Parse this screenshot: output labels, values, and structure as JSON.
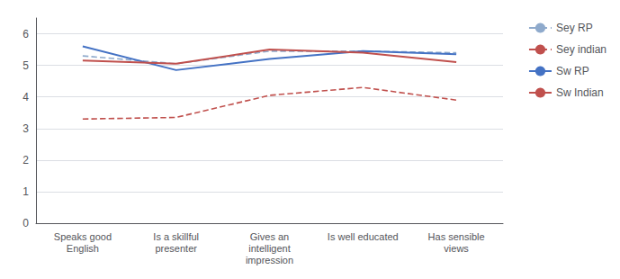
{
  "chart_data": {
    "type": "line",
    "categories": [
      "Speaks good\nEnglish",
      "Is a skillful\npresenter",
      "Gives an\nintelligent\nimpression",
      "Is well educated",
      "Has sensible\nviews"
    ],
    "series": [
      {
        "name": "Sey RP",
        "color": "#8faacc",
        "line_style": "dashed",
        "values": [
          5.3,
          5.05,
          5.45,
          5.45,
          5.4
        ]
      },
      {
        "name": "Sey indian",
        "color": "#c0504d",
        "line_style": "dashed",
        "values": [
          3.3,
          3.35,
          4.05,
          4.3,
          3.9
        ]
      },
      {
        "name": "Sw RP",
        "color": "#4472c4",
        "line_style": "solid",
        "values": [
          5.6,
          4.85,
          5.2,
          5.45,
          5.35
        ]
      },
      {
        "name": "Sw Indian",
        "color": "#c0504d",
        "line_style": "solid",
        "values": [
          5.15,
          5.05,
          5.5,
          5.4,
          5.1
        ]
      }
    ],
    "ylim": [
      0,
      6.5
    ],
    "yticks": [
      0,
      1,
      2,
      3,
      4,
      5,
      6
    ],
    "grid": true,
    "legend": "right"
  }
}
